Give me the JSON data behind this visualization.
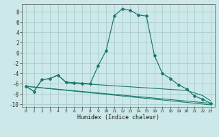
{
  "xlabel": "Humidex (Indice chaleur)",
  "background_color": "#cce8e8",
  "grid_color": "#aacccc",
  "line_color": "#1a7a6e",
  "xlim": [
    -0.5,
    23.5
  ],
  "ylim": [
    -10.5,
    9.5
  ],
  "yticks": [
    -10,
    -8,
    -6,
    -4,
    -2,
    0,
    2,
    4,
    6,
    8
  ],
  "xticks": [
    0,
    1,
    2,
    3,
    4,
    5,
    6,
    7,
    8,
    9,
    10,
    11,
    12,
    13,
    14,
    15,
    16,
    17,
    18,
    19,
    20,
    21,
    22,
    23
  ],
  "main_x": [
    0,
    1,
    2,
    3,
    4,
    5,
    6,
    7,
    8,
    9,
    10,
    11,
    12,
    13,
    14,
    15,
    16,
    17,
    18,
    19,
    20,
    21,
    22,
    23
  ],
  "main_y": [
    -6.5,
    -7.5,
    -5.2,
    -5.0,
    -4.3,
    -5.7,
    -5.8,
    -5.9,
    -6.0,
    -2.5,
    0.5,
    7.2,
    8.6,
    8.3,
    7.4,
    7.2,
    -0.5,
    -4.0,
    -5.0,
    -6.2,
    -7.0,
    -8.4,
    -9.0,
    -9.8
  ],
  "line2_x": [
    0,
    1,
    2,
    3,
    4,
    5,
    6,
    7,
    8,
    9,
    10,
    11,
    12,
    13,
    14,
    15,
    16,
    17,
    18,
    19,
    20,
    21,
    22,
    23
  ],
  "line2_y": [
    -6.5,
    -7.5,
    -5.2,
    -5.0,
    -4.3,
    -5.8,
    -5.9,
    -6.0,
    -6.1,
    -6.2,
    -6.3,
    -6.4,
    -6.5,
    -6.6,
    -6.7,
    -6.8,
    -6.9,
    -7.0,
    -7.1,
    -7.2,
    -7.3,
    -7.8,
    -8.3,
    -9.3
  ],
  "line3_x": [
    0,
    23
  ],
  "line3_y": [
    -6.5,
    -9.8
  ],
  "line4_x": [
    0,
    23
  ],
  "line4_y": [
    -6.5,
    -10.1
  ]
}
